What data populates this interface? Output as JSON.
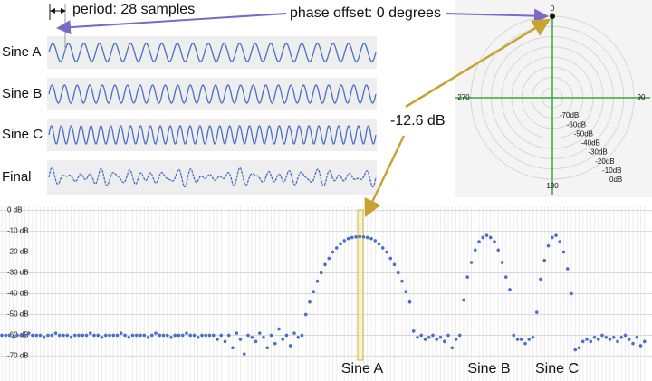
{
  "annotations": {
    "period": "period: 28 samples",
    "phase": "phase offset: 0 degrees",
    "peak": "-12.6 dB"
  },
  "waveforms": [
    {
      "label": "Sine A",
      "cycles": 21
    },
    {
      "label": "Sine B",
      "cycles": 26
    },
    {
      "label": "Sine C",
      "cycles": 33
    },
    {
      "label": "Final"
    }
  ],
  "polar": {
    "angle_ticks": [
      0,
      90,
      180,
      270
    ],
    "rlim": [
      -80,
      0
    ],
    "ring_ticks": [
      {
        "value": -70,
        "label": "-70dB"
      },
      {
        "value": -60,
        "label": "-60dB"
      },
      {
        "value": -50,
        "label": "-50dB"
      },
      {
        "value": -40,
        "label": "-40dB"
      },
      {
        "value": -30,
        "label": "-30dB"
      },
      {
        "value": -20,
        "label": "-20dB"
      },
      {
        "value": -10,
        "label": "-10dB"
      },
      {
        "value": 0,
        "label": "0dB"
      }
    ],
    "point": {
      "angle": 0,
      "magnitude": 0
    }
  },
  "chart_data": {
    "type": "scatter",
    "color": "#4a6fc7",
    "ylim": [
      -82,
      2
    ],
    "yticks": [
      {
        "value": 0,
        "label": "0 dB"
      },
      {
        "value": -10,
        "label": "-10 dB"
      },
      {
        "value": -20,
        "label": "-20 dB"
      },
      {
        "value": -30,
        "label": "-30 dB"
      },
      {
        "value": -40,
        "label": "-40 dB"
      },
      {
        "value": -50,
        "label": "-50 dB"
      },
      {
        "value": -60,
        "label": "-60 dB"
      },
      {
        "value": -70,
        "label": "-70 dB"
      }
    ],
    "grid": true,
    "labels": [
      "Sine A",
      "Sine B",
      "Sine C"
    ],
    "values": [
      -60,
      -60,
      -60,
      -61,
      -60,
      -60,
      -60,
      -59,
      -60,
      -60,
      -60,
      -61,
      -60,
      -60,
      -59,
      -60,
      -60,
      -60,
      -61,
      -60,
      -60,
      -60,
      -60,
      -59,
      -60,
      -60,
      -61,
      -60,
      -60,
      -60,
      -60,
      -59,
      -60,
      -61,
      -60,
      -60,
      -60,
      -60,
      -61,
      -60,
      -59,
      -60,
      -60,
      -60,
      -61,
      -60,
      -60,
      -60,
      -59,
      -60,
      -60,
      -61,
      -60,
      -60,
      -60,
      -60,
      -62,
      -60,
      -63,
      -60,
      -66,
      -59,
      -62,
      -69,
      -60,
      -61,
      -63,
      -59,
      -61,
      -66,
      -60,
      -64,
      -57,
      -62,
      -60,
      -65,
      -59,
      -61,
      -60,
      -50,
      -44,
      -39,
      -34,
      -30,
      -26,
      -23,
      -20,
      -18,
      -16,
      -14.5,
      -13.5,
      -13,
      -12.7,
      -12.6,
      -12.7,
      -13,
      -13.5,
      -14.5,
      -16,
      -18,
      -20,
      -23,
      -26,
      -30,
      -34,
      -39,
      -44,
      -58,
      -61,
      -60,
      -62,
      -61,
      -60,
      -62,
      -61,
      -63,
      -60,
      -66,
      -62,
      -60,
      -43,
      -32,
      -25,
      -19,
      -15,
      -13,
      -12,
      -13,
      -15,
      -19,
      -25,
      -32,
      -38,
      -60,
      -62,
      -62,
      -64,
      -62,
      -61,
      -49,
      -33,
      -24,
      -17,
      -13,
      -12,
      -15,
      -20,
      -28,
      -40,
      -67,
      -66,
      -63,
      -62,
      -63,
      -61,
      -62,
      -60,
      -61,
      -62,
      -61,
      -63,
      -61,
      -60,
      -62,
      -64,
      -61,
      -65,
      -63
    ]
  }
}
